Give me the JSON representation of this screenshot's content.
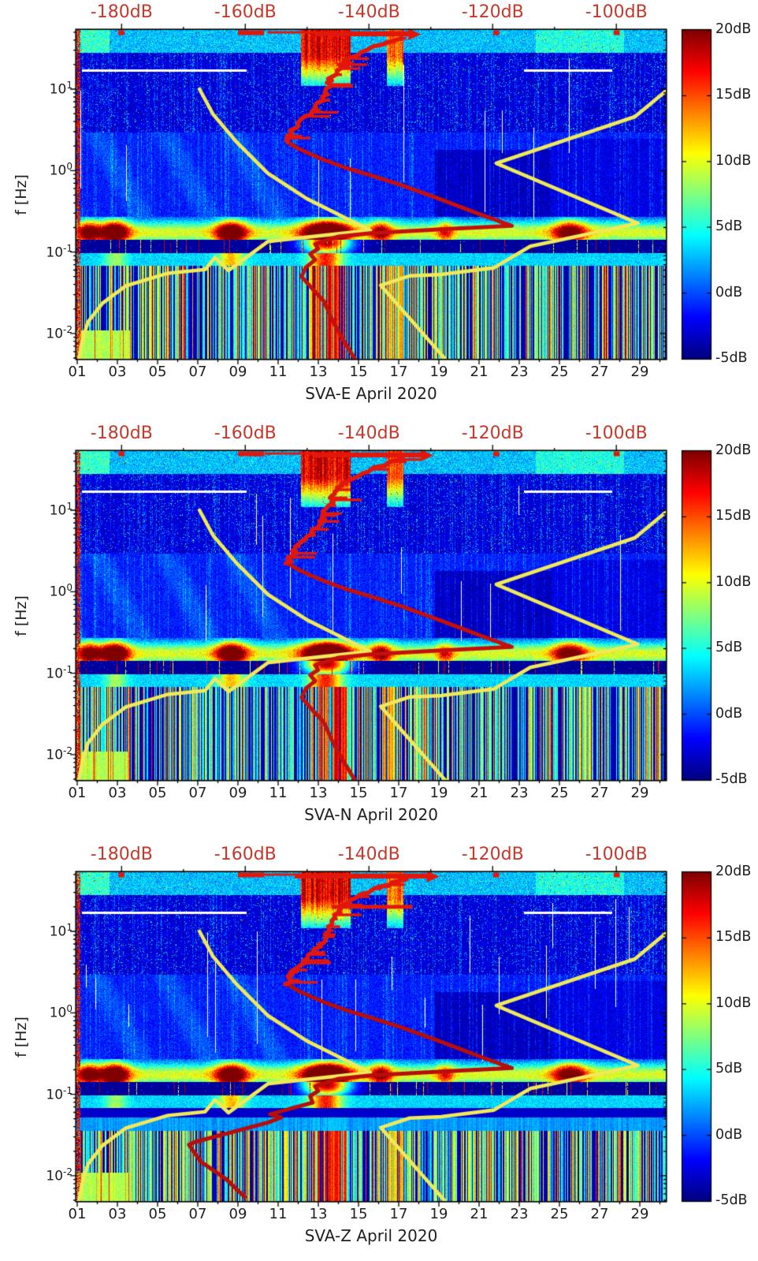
{
  "colors": {
    "background": "#ffffff",
    "axis_text": "#1f1f1f",
    "top_tick_label": "#c5392b",
    "red_curve_bright": "#e2170c",
    "red_curve_mid": "#c4100d",
    "red_curve_dark": "#b70d0b",
    "yellow_curve": "#f0e95a",
    "frame": "#000000"
  },
  "axes": {
    "top": {
      "tick_labels": [
        "-180dB",
        "-160dB",
        "-140dB",
        "-120dB",
        "-100dB"
      ],
      "tick_values_db": [
        -180,
        -160,
        -140,
        -120,
        -100
      ],
      "range_db": [
        -187.3,
        -92.0
      ],
      "minor_step_db": 10
    },
    "left": {
      "label": "f [Hz]",
      "tick_labels": [
        {
          "base": "10",
          "exp": "1"
        },
        {
          "base": "10",
          "exp": "0"
        },
        {
          "base": "10",
          "exp": "-1"
        },
        {
          "base": "10",
          "exp": "-2"
        }
      ],
      "tick_values_hz": [
        10,
        1,
        0.1,
        0.01
      ],
      "scale": "log",
      "range_hz": [
        0.0049,
        53
      ]
    },
    "bottom": {
      "tick_labels": [
        "01",
        "03",
        "05",
        "07",
        "09",
        "11",
        "13",
        "15",
        "17",
        "19",
        "21",
        "23",
        "25",
        "27",
        "29"
      ],
      "tick_values_day": [
        1,
        3,
        5,
        7,
        9,
        11,
        13,
        15,
        17,
        19,
        21,
        23,
        25,
        27,
        29
      ],
      "minor_step_days": 1,
      "range_days": [
        0.96,
        30.3
      ]
    }
  },
  "colorbar": {
    "tick_labels": [
      "20dB",
      "15dB",
      "10dB",
      "5dB",
      "0dB",
      "-5dB"
    ],
    "tick_values_db": [
      20,
      15,
      10,
      5,
      0,
      -5
    ],
    "range_db": [
      -5,
      20
    ],
    "colormap": "jet"
  },
  "panels": [
    {
      "id": "sva-e",
      "xlabel": "SVA-E April 2020"
    },
    {
      "id": "sva-n",
      "xlabel": "SVA-N April 2020"
    },
    {
      "id": "sva-z",
      "xlabel": "SVA-Z April 2020"
    }
  ],
  "chart_data": {
    "type": "heatmap",
    "panels": [
      {
        "station": "SVA",
        "component": "E",
        "xlabel": "SVA-E April 2020"
      },
      {
        "station": "SVA",
        "component": "N",
        "xlabel": "SVA-N April 2020"
      },
      {
        "station": "SVA",
        "component": "Z",
        "xlabel": "SVA-Z April 2020"
      }
    ],
    "x_axis": {
      "unit": "day of April 2020",
      "range_days": [
        0.96,
        30.3
      ]
    },
    "y_axis": {
      "label": "f [Hz]",
      "scale": "log",
      "range_hz": [
        0.0049,
        53
      ]
    },
    "color_axis": {
      "unit": "dB",
      "range_db": [
        -5,
        20
      ],
      "colormap": "jet"
    },
    "top_axis": {
      "unit": "dB",
      "ticks_db": [
        -180,
        -160,
        -140,
        -120,
        -100
      ],
      "range_db": [
        -187.3,
        -92.0
      ],
      "purpose": "scale for overlay PSD curves"
    },
    "overlay_curves": [
      {
        "id": "red-psd-curve",
        "color_key": "red_curve_bright",
        "axis": "top_db",
        "applies_to": [
          "SVA-E",
          "SVA-N",
          "SVA-Z"
        ],
        "jagged_above_hz": 3,
        "arrow_at_top": true,
        "points_db_hz": [
          [
            -142.3,
            0.0049
          ],
          [
            -144.0,
            0.008
          ],
          [
            -145.8,
            0.014
          ],
          [
            -147.3,
            0.025
          ],
          [
            -149.1,
            0.035
          ],
          [
            -150.9,
            0.05
          ],
          [
            -150.2,
            0.065
          ],
          [
            -148.7,
            0.08
          ],
          [
            -149.5,
            0.095
          ],
          [
            -148.2,
            0.11
          ],
          [
            -148.7,
            0.125
          ],
          [
            -146.8,
            0.14
          ],
          [
            -144.9,
            0.155
          ],
          [
            -139.8,
            0.17
          ],
          [
            -128.3,
            0.19
          ],
          [
            -116.9,
            0.21
          ],
          [
            -122.0,
            0.29
          ],
          [
            -128.3,
            0.44
          ],
          [
            -134.7,
            0.66
          ],
          [
            -139.8,
            0.88
          ],
          [
            -143.6,
            1.07
          ],
          [
            -146.8,
            1.31
          ],
          [
            -149.3,
            1.57
          ],
          [
            -151.5,
            1.88
          ],
          [
            -153.2,
            2.24
          ],
          [
            -152.5,
            3.14
          ],
          [
            -150.6,
            4.38
          ],
          [
            -149.3,
            5.5
          ],
          [
            -148.0,
            6.9
          ],
          [
            -147.4,
            8.6
          ],
          [
            -146.8,
            10.8
          ],
          [
            -146.2,
            13.4
          ],
          [
            -145.5,
            16.9
          ],
          [
            -144.3,
            21.1
          ],
          [
            -142.3,
            26.6
          ],
          [
            -139.8,
            31.8
          ],
          [
            -137.2,
            37.4
          ],
          [
            -135.3,
            41.9
          ],
          [
            -133.6,
            45.5
          ]
        ]
      },
      {
        "id": "red-psd-low-freq-override-sva-z",
        "color_key": "red_curve_dark",
        "axis": "top_db",
        "applies_to": [
          "SVA-Z"
        ],
        "points_db_hz": [
          [
            -160.1,
            0.0055
          ],
          [
            -163.1,
            0.0091
          ],
          [
            -167.2,
            0.0149
          ],
          [
            -169.1,
            0.024
          ],
          [
            -168.1,
            0.026
          ],
          [
            -156.3,
            0.045
          ],
          [
            -154.2,
            0.052
          ],
          [
            -156.0,
            0.057
          ],
          [
            -149.1,
            0.079
          ]
        ]
      },
      {
        "id": "yellow-noise-model-low",
        "color_key": "yellow_curve",
        "axis": "top_db",
        "applies_to": [
          "SVA-E",
          "SVA-N",
          "SVA-Z"
        ],
        "points_db_hz": [
          [
            -186.9,
            0.0049
          ],
          [
            -186.3,
            0.0086
          ],
          [
            -185.4,
            0.014
          ],
          [
            -183.1,
            0.0235
          ],
          [
            -179.3,
            0.0385
          ],
          [
            -172.5,
            0.055
          ],
          [
            -166.5,
            0.061
          ],
          [
            -164.9,
            0.0855
          ],
          [
            -162.7,
            0.0594
          ],
          [
            -156.3,
            0.135
          ],
          [
            -139.8,
            0.185
          ],
          [
            -150.0,
            0.45
          ],
          [
            -156.3,
            0.92
          ],
          [
            -161.4,
            2.24
          ],
          [
            -165.2,
            4.9
          ],
          [
            -167.4,
            10.0
          ]
        ]
      },
      {
        "id": "yellow-noise-model-high",
        "color_key": "yellow_curve",
        "axis": "top_db",
        "applies_to": [
          "SVA-E",
          "SVA-N",
          "SVA-Z"
        ],
        "points_db_hz": [
          [
            -127.7,
            0.0049
          ],
          [
            -138.1,
            0.039
          ],
          [
            -133.4,
            0.051
          ],
          [
            -128.3,
            0.053
          ],
          [
            -119.8,
            0.064
          ],
          [
            -113.9,
            0.118
          ],
          [
            -108.3,
            0.145
          ],
          [
            -96.5,
            0.226
          ],
          [
            -119.4,
            1.23
          ],
          [
            -97.0,
            4.58
          ],
          [
            -91.6,
            10.0
          ]
        ]
      }
    ],
    "red_top_bars_db": [
      [
        -148.5,
        -133.5
      ],
      [
        -149.0,
        -131.5
      ],
      [
        -152.0,
        -130.5
      ]
    ],
    "red_top_clip_marks_days": [
      [
        3.05,
        3.35
      ],
      [
        9.0,
        10.3
      ],
      [
        21.7,
        22.0
      ],
      [
        27.7,
        28.0
      ]
    ],
    "sva_z_red_barb": {
      "f_hz": 20,
      "db_range": [
        -146,
        -133
      ]
    },
    "spectrogram_features": {
      "microseism_band_hz": [
        0.142,
        0.272
      ],
      "microseism_ridge_hz": 0.175,
      "microseism_base_db": 10,
      "event_blobs": [
        {
          "day": 1.55,
          "amp_db": 14,
          "sd_days": 0.4
        },
        {
          "day": 2.85,
          "amp_db": 19,
          "sd_days": 0.5
        },
        {
          "day": 8.65,
          "amp_db": 18,
          "sd_days": 0.55
        },
        {
          "day": 13.4,
          "amp_db": 26,
          "sd_days": 0.8
        },
        {
          "day": 16.1,
          "amp_db": 12,
          "sd_days": 0.4
        },
        {
          "day": 19.3,
          "amp_db": 8,
          "sd_days": 0.3
        },
        {
          "day": 25.5,
          "amp_db": 15,
          "sd_days": 0.6
        }
      ],
      "quiet_band_hz": [
        0.098,
        0.142
      ],
      "quiet_band_db": -4.3,
      "cyan_band_hz": [
        0.068,
        0.098
      ],
      "cyan_band_db": 3.4,
      "striped_region_below_hz": 0.068,
      "orange_stripe_days": [
        [
          12.6,
          14.4
        ],
        [
          16.0,
          17.2
        ]
      ],
      "high_freq_orange_column_days": [
        [
          12.1,
          14.6
        ],
        [
          16.4,
          17.2
        ]
      ],
      "bright_high_freq_days": [
        [
          1.0,
          2.6
        ],
        [
          23.8,
          28.2
        ]
      ],
      "dark_patch": {
        "days": [
          18.8,
          24.6
        ],
        "below_hz": 1.8
      },
      "white_line": {
        "f_hz": 17,
        "day_ranges": [
          [
            1.2,
            9.4
          ],
          [
            23.2,
            27.6
          ]
        ]
      },
      "left_edge_hot_column": true,
      "sva_z_horizontal_bands": {
        "light_hz": [
          0.036,
          0.052
        ],
        "dark_hz": [
          0.052,
          0.068
        ]
      },
      "bottom_left_green_patch": {
        "days": [
          1.0,
          3.6
        ],
        "below_hz": 0.011
      }
    }
  }
}
